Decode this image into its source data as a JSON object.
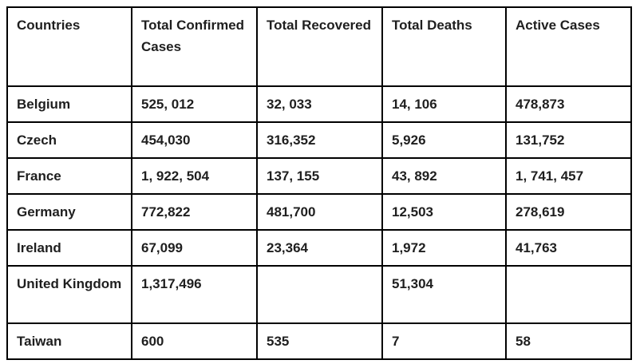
{
  "document": {
    "background_color": "#ffffff",
    "border_color": "#000000",
    "text_color": "#1f1f1f"
  },
  "table": {
    "headers": [
      "Countries",
      "Total Confirmed Cases",
      "Total Recovered",
      "Total Deaths",
      "Active Cases"
    ],
    "rows": [
      [
        "Belgium",
        "525, 012",
        "32, 033",
        "14, 106",
        "478,873"
      ],
      [
        "Czech",
        "454,030",
        "316,352",
        "5,926",
        "131,752"
      ],
      [
        "France",
        "1, 922, 504",
        "137, 155",
        "43, 892",
        "1, 741, 457"
      ],
      [
        "Germany",
        "772,822",
        "481,700",
        "12,503",
        "278,619"
      ],
      [
        "Ireland",
        "67,099",
        "23,364",
        "1,972",
        "41,763"
      ],
      [
        "United Kingdom",
        "1,317,496",
        "",
        "51,304",
        ""
      ],
      [
        "Taiwan",
        "600",
        "535",
        "7",
        "58"
      ]
    ]
  }
}
